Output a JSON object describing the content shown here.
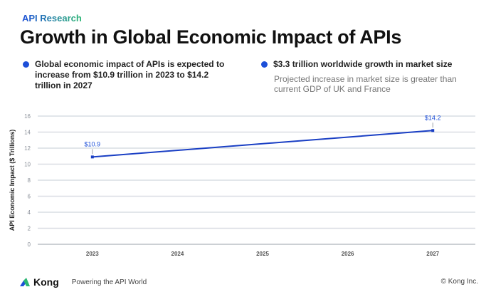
{
  "header": {
    "kicker": "API Research",
    "title": "Growth in Global Economic Impact of APIs"
  },
  "highlights": [
    {
      "text": "Global economic impact of APIs is expected to increase from $10.9 trillion in 2023 to $14.2 trillion in 2027"
    },
    {
      "text": "$3.3 trillion worldwide growth in market size",
      "subtext": "Projected increase in market size is greater than current GDP of UK and France"
    }
  ],
  "colors": {
    "accent": "#1d4fd8",
    "line": "#1a3fc4",
    "grid": "#d9dde3"
  },
  "chart_data": {
    "type": "line",
    "title": "",
    "xlabel": "",
    "ylabel": "API Economic Impact ($ Trillions)",
    "categories": [
      "2023",
      "2024",
      "2025",
      "2026",
      "2027"
    ],
    "series": [
      {
        "points": [
          {
            "x": "2023",
            "y": 10.9,
            "label": "$10.9"
          },
          {
            "x": "2027",
            "y": 14.2,
            "label": "$14.2"
          }
        ]
      }
    ],
    "ylim": [
      0,
      16
    ],
    "yticks": [
      "0",
      "2",
      "4",
      "6",
      "8",
      "10",
      "12",
      "14",
      "16"
    ],
    "grid": true,
    "legend": "none"
  },
  "footer": {
    "brand": "Kong",
    "tagline": "Powering the API World",
    "copyright": "© Kong Inc."
  }
}
